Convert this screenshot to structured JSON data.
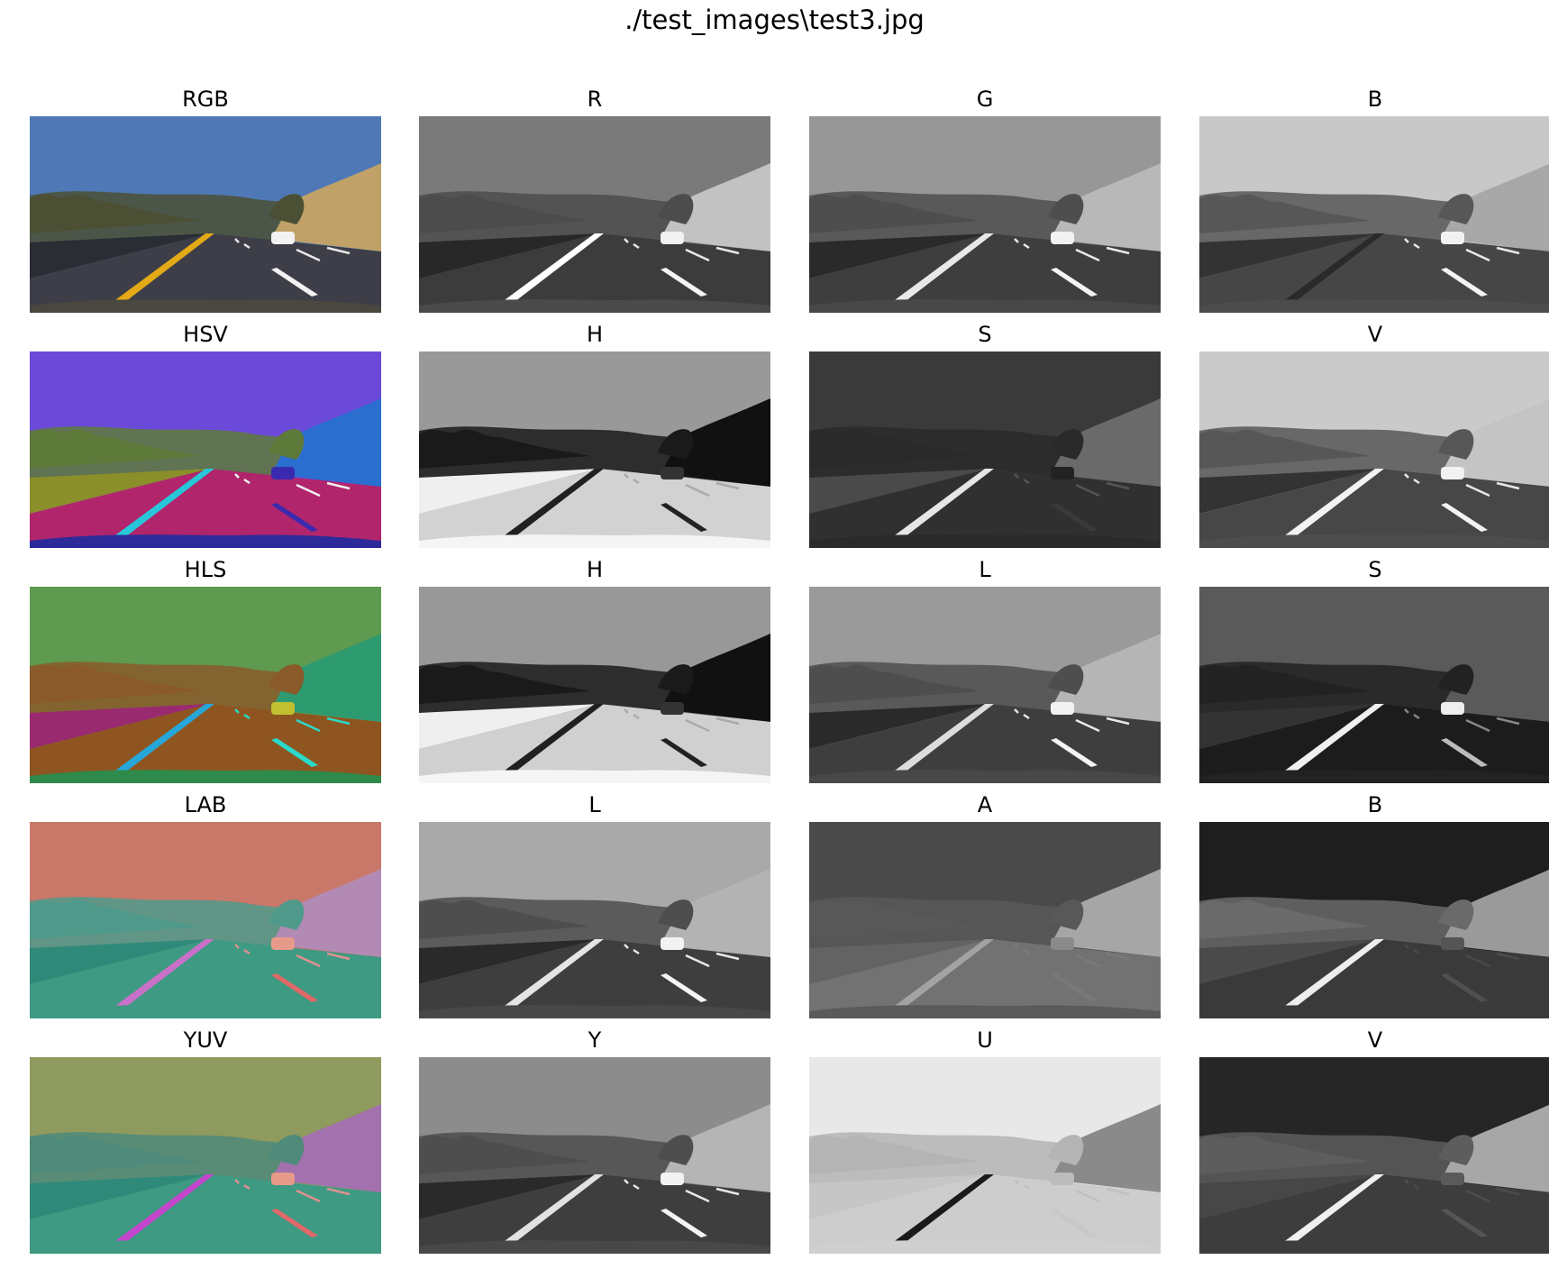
{
  "figure": {
    "title": "./test_images\\test3.jpg"
  },
  "rows": [
    {
      "space": "RGB",
      "cells": [
        {
          "title": "RGB",
          "palette": {
            "sky": "#4f79b6",
            "hill": "#c0a268",
            "trees": "#4b5035",
            "road": "#3d3e48",
            "wall": "#2a2d34",
            "left_line": "#e3a917",
            "right_line": "#f2f2f2",
            "dash": "#e8e8e8",
            "hood": "#4a4740",
            "car": "#f2f2f2"
          }
        },
        {
          "title": "R",
          "palette": {
            "sky": "#7a7a7a",
            "hill": "#c2c2c2",
            "trees": "#4c4c4c",
            "road": "#3c3c3c",
            "wall": "#282828",
            "left_line": "#ffffff",
            "right_line": "#f4f4f4",
            "dash": "#e8e8e8",
            "hood": "#4a4a4a",
            "car": "#f2f2f2"
          }
        },
        {
          "title": "G",
          "palette": {
            "sky": "#979797",
            "hill": "#b8b8b8",
            "trees": "#4e4e4e",
            "road": "#3e3e3e",
            "wall": "#2a2a2a",
            "left_line": "#e8e8e8",
            "right_line": "#f4f4f4",
            "dash": "#e8e8e8",
            "hood": "#484848",
            "car": "#f2f2f2"
          }
        },
        {
          "title": "B",
          "palette": {
            "sky": "#c8c8c8",
            "hill": "#a8a8a8",
            "trees": "#575757",
            "road": "#464646",
            "wall": "#333333",
            "left_line": "#2a2a2a",
            "right_line": "#f4f4f4",
            "dash": "#e8e8e8",
            "hood": "#4c4c4c",
            "car": "#f2f2f2"
          }
        }
      ]
    },
    {
      "space": "HSV",
      "cells": [
        {
          "title": "HSV",
          "palette": {
            "sky": "#6b4ad9",
            "hill": "#2a6fcf",
            "trees": "#5e7a3a",
            "road": "#b0256c",
            "wall": "#8a8f2a",
            "left_line": "#27c7d9",
            "right_line": "#3a2ab0",
            "dash": "#f0f0f0",
            "hood": "#2d2b9a",
            "car": "#3a2ab0"
          }
        },
        {
          "title": "H",
          "palette": {
            "sky": "#999999",
            "hill": "#111111",
            "trees": "#1a1a1a",
            "road": "#d2d2d2",
            "wall": "#efefef",
            "left_line": "#202020",
            "right_line": "#222222",
            "dash": "#aaaaaa",
            "hood": "#f5f5f5",
            "car": "#333333"
          }
        },
        {
          "title": "S",
          "palette": {
            "sky": "#3a3a3a",
            "hill": "#6a6a6a",
            "trees": "#2a2a2a",
            "road": "#303030",
            "wall": "#4a4a4a",
            "left_line": "#e6e6e6",
            "right_line": "#3a3a3a",
            "dash": "#555555",
            "hood": "#2a2a2a",
            "car": "#222222"
          }
        },
        {
          "title": "V",
          "palette": {
            "sky": "#cacaca",
            "hill": "#c4c4c4",
            "trees": "#575757",
            "road": "#474747",
            "wall": "#333333",
            "left_line": "#f2f2f2",
            "right_line": "#f4f4f4",
            "dash": "#e8e8e8",
            "hood": "#4d4d4d",
            "car": "#f2f2f2"
          }
        }
      ]
    },
    {
      "space": "HLS",
      "cells": [
        {
          "title": "HLS",
          "palette": {
            "sky": "#5e9a50",
            "hill": "#2e9a70",
            "trees": "#8a5a2a",
            "road": "#8f5520",
            "wall": "#9a2a70",
            "left_line": "#27a7d9",
            "right_line": "#2ad9c9",
            "dash": "#2ad9c9",
            "hood": "#2e8a4a",
            "car": "#c0c030"
          }
        },
        {
          "title": "H",
          "palette": {
            "sky": "#989898",
            "hill": "#111111",
            "trees": "#1a1a1a",
            "road": "#d0d0d0",
            "wall": "#efefef",
            "left_line": "#202020",
            "right_line": "#222222",
            "dash": "#aaaaaa",
            "hood": "#f5f5f5",
            "car": "#333333"
          }
        },
        {
          "title": "L",
          "palette": {
            "sky": "#9a9a9a",
            "hill": "#b5b5b5",
            "trees": "#4e4e4e",
            "road": "#3e3e3e",
            "wall": "#2a2a2a",
            "left_line": "#dcdcdc",
            "right_line": "#f4f4f4",
            "dash": "#e8e8e8",
            "hood": "#484848",
            "car": "#f2f2f2"
          }
        },
        {
          "title": "S",
          "palette": {
            "sky": "#5a5a5a",
            "hill": "#5a5a5a",
            "trees": "#222222",
            "road": "#1c1c1c",
            "wall": "#333333",
            "left_line": "#f0f0f0",
            "right_line": "#bbbbbb",
            "dash": "#888888",
            "hood": "#222222",
            "car": "#eeeeee"
          }
        }
      ]
    },
    {
      "space": "LAB",
      "cells": [
        {
          "title": "LAB",
          "palette": {
            "sky": "#c9786a",
            "hill": "#b38ab4",
            "trees": "#4f9a8a",
            "road": "#3e9a82",
            "wall": "#2f8a7a",
            "left_line": "#c970c9",
            "right_line": "#e06868",
            "dash": "#e09090",
            "hood": "#3e9a82",
            "car": "#e89a8a"
          }
        },
        {
          "title": "L",
          "palette": {
            "sky": "#a9a9a9",
            "hill": "#b3b3b3",
            "trees": "#4e4e4e",
            "road": "#3e3e3e",
            "wall": "#2a2a2a",
            "left_line": "#e4e4e4",
            "right_line": "#f4f4f4",
            "dash": "#e8e8e8",
            "hood": "#484848",
            "car": "#f2f2f2"
          }
        },
        {
          "title": "A",
          "palette": {
            "sky": "#4a4a4a",
            "hill": "#a6a6a6",
            "trees": "#585858",
            "road": "#727272",
            "wall": "#636363",
            "left_line": "#a3a3a3",
            "right_line": "#787878",
            "dash": "#7a7a7a",
            "hood": "#5a5a5a",
            "car": "#8a8a8a"
          }
        },
        {
          "title": "B",
          "palette": {
            "sky": "#1e1e1e",
            "hill": "#9a9a9a",
            "trees": "#6a6a6a",
            "road": "#3a3a3a",
            "wall": "#4a4a4a",
            "left_line": "#ededed",
            "right_line": "#505050",
            "dash": "#4a4a4a",
            "hood": "#3a3a3a",
            "car": "#555555"
          }
        }
      ]
    },
    {
      "space": "YUV",
      "cells": [
        {
          "title": "YUV",
          "palette": {
            "sky": "#8e9a5e",
            "hill": "#a271ae",
            "trees": "#4f8a7a",
            "road": "#3e9a82",
            "wall": "#2f8a7a",
            "left_line": "#c346cc",
            "right_line": "#e06868",
            "dash": "#e09090",
            "hood": "#3e9a82",
            "car": "#e89a8a"
          }
        },
        {
          "title": "Y",
          "palette": {
            "sky": "#8c8c8c",
            "hill": "#b5b5b5",
            "trees": "#4e4e4e",
            "road": "#3e3e3e",
            "wall": "#2a2a2a",
            "left_line": "#e2e2e2",
            "right_line": "#f4f4f4",
            "dash": "#e8e8e8",
            "hood": "#484848",
            "car": "#f2f2f2"
          }
        },
        {
          "title": "U",
          "palette": {
            "sky": "#e8e8e8",
            "hill": "#8a8a8a",
            "trees": "#b4b4b4",
            "road": "#cdcdcd",
            "wall": "#c6c6c6",
            "left_line": "#1a1a1a",
            "right_line": "#c8c8c8",
            "dash": "#c0c0c0",
            "hood": "#cfcfcf",
            "car": "#bcbcbc"
          }
        },
        {
          "title": "V",
          "palette": {
            "sky": "#262626",
            "hill": "#a7a7a7",
            "trees": "#5d5d5d",
            "road": "#3d3d3d",
            "wall": "#474747",
            "left_line": "#f0f0f0",
            "right_line": "#555555",
            "dash": "#4d4d4d",
            "hood": "#3d3d3d",
            "car": "#5a5a5a"
          }
        }
      ]
    }
  ]
}
